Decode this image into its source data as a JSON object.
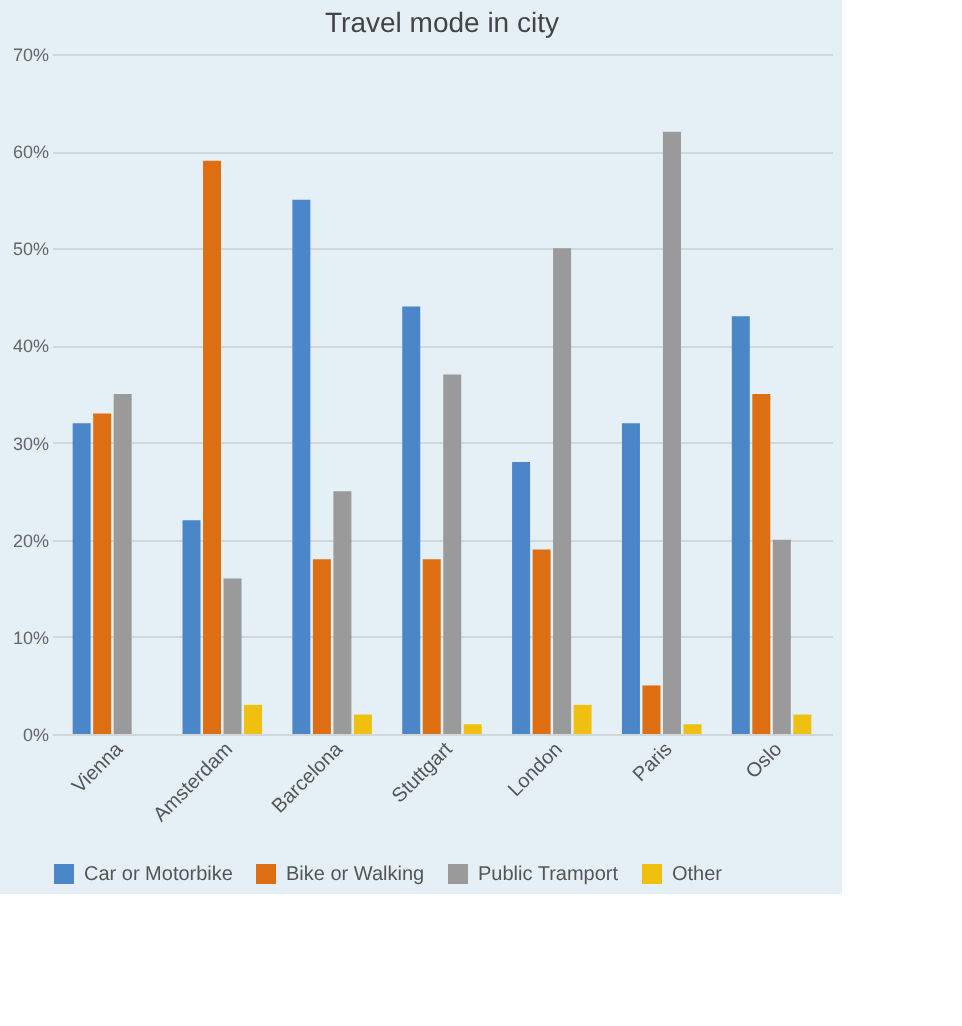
{
  "chart_data": {
    "type": "bar",
    "title": "Travel mode in city",
    "categories": [
      "Vienna",
      "Amsterdam",
      "Barcelona",
      "Stuttgart",
      "London",
      "Paris",
      "Oslo"
    ],
    "series": [
      {
        "name": "Car or Motorbike",
        "color": "#4a86c8",
        "values": [
          32,
          22,
          55,
          44,
          28,
          32,
          43
        ]
      },
      {
        "name": "Bike or Walking",
        "color": "#dd6f12",
        "values": [
          33,
          59,
          18,
          18,
          19,
          5,
          35
        ]
      },
      {
        "name": "Public Tramport",
        "color": "#9a9a9a",
        "values": [
          35,
          16,
          25,
          37,
          50,
          62,
          20
        ]
      },
      {
        "name": "Other",
        "color": "#f0c010",
        "values": [
          null,
          3,
          2,
          1,
          3,
          1,
          2
        ]
      }
    ],
    "ylim": [
      0,
      70
    ],
    "yticks": [
      {
        "value": 0,
        "label": "0%"
      },
      {
        "value": 10,
        "label": "10%"
      },
      {
        "value": 20,
        "label": "20%"
      },
      {
        "value": 30,
        "label": "30%"
      },
      {
        "value": 40,
        "label": "40%"
      },
      {
        "value": 50,
        "label": "50%"
      },
      {
        "value": 60,
        "label": "60%"
      },
      {
        "value": 70,
        "label": "70%"
      }
    ],
    "grid": "y",
    "legend": "bottom"
  }
}
